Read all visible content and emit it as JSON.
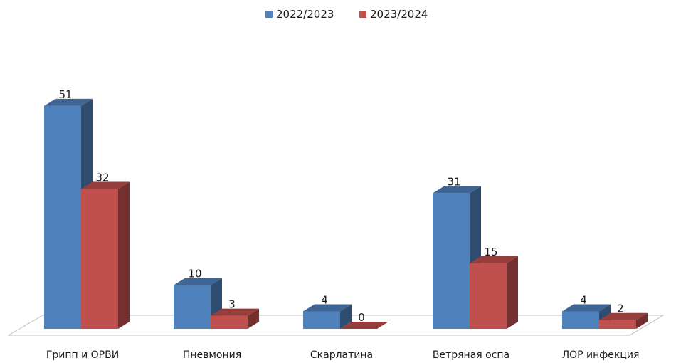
{
  "chart_data": {
    "type": "bar",
    "categories": [
      "Грипп и ОРВИ",
      "Пневмония",
      "Скарлатина",
      "Ветряная оспа",
      "ЛОР инфекция"
    ],
    "series": [
      {
        "name": "2022/2023",
        "values": [
          51,
          10,
          4,
          31,
          4
        ],
        "color": "#4F81BD"
      },
      {
        "name": "2023/2024",
        "values": [
          32,
          3,
          0,
          15,
          2
        ],
        "color": "#C0504D"
      }
    ],
    "title": "",
    "xlabel": "",
    "ylabel": "",
    "ylim": [
      0,
      55
    ],
    "grid": false,
    "legend_position": "top-center",
    "style": "3d-clustered-column"
  }
}
